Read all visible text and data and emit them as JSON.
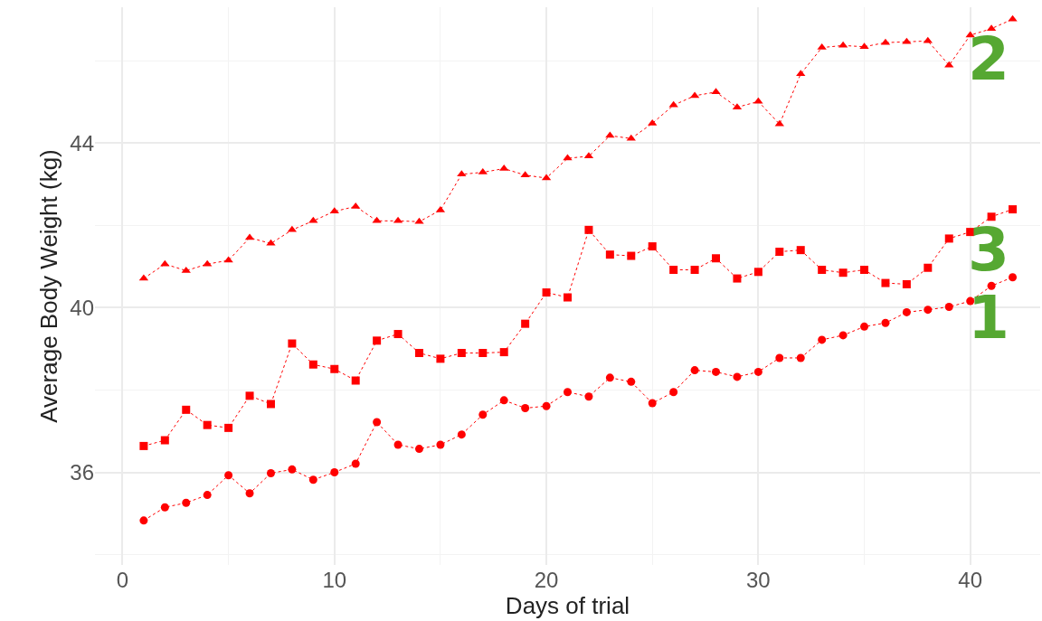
{
  "chart_data": {
    "type": "line",
    "xlabel": "Days of trial",
    "ylabel": "Average Body Weight (kg)",
    "x": [
      1,
      2,
      3,
      4,
      5,
      6,
      7,
      8,
      9,
      10,
      11,
      12,
      13,
      14,
      15,
      16,
      17,
      18,
      19,
      20,
      21,
      22,
      23,
      24,
      25,
      26,
      27,
      28,
      29,
      30,
      31,
      32,
      33,
      34,
      35,
      36,
      37,
      38,
      39,
      40,
      41,
      42
    ],
    "series": [
      {
        "name": "1",
        "color": "#ff0000",
        "marker": "circle",
        "values": [
          34.83,
          35.15,
          35.26,
          35.45,
          35.93,
          35.49,
          35.98,
          36.07,
          35.82,
          36.0,
          36.21,
          37.22,
          36.67,
          36.57,
          36.67,
          36.92,
          37.4,
          37.75,
          37.56,
          37.61,
          37.95,
          37.84,
          38.3,
          38.2,
          37.68,
          37.95,
          38.48,
          38.44,
          38.32,
          38.44,
          38.78,
          38.78,
          39.22,
          39.33,
          39.54,
          39.63,
          39.89,
          39.95,
          40.02,
          40.16,
          40.53,
          40.74
        ]
      },
      {
        "name": "2",
        "color": "#ff0000",
        "marker": "triangle",
        "values": [
          40.71,
          41.06,
          40.9,
          41.06,
          41.15,
          41.7,
          41.56,
          41.89,
          42.11,
          42.34,
          42.46,
          42.11,
          42.11,
          42.09,
          42.37,
          43.24,
          43.29,
          43.38,
          43.22,
          43.15,
          43.63,
          43.68,
          44.18,
          44.11,
          44.48,
          44.92,
          45.15,
          45.24,
          44.87,
          45.01,
          44.46,
          45.68,
          46.32,
          46.37,
          46.34,
          46.44,
          46.46,
          46.48,
          45.89,
          46.62,
          46.78,
          47.01
        ]
      },
      {
        "name": "3",
        "color": "#ff0000",
        "marker": "square",
        "values": [
          36.64,
          36.78,
          37.52,
          37.15,
          37.08,
          37.86,
          37.66,
          39.13,
          38.62,
          38.51,
          38.23,
          39.2,
          39.36,
          38.9,
          38.76,
          38.9,
          38.9,
          38.92,
          39.61,
          40.37,
          40.25,
          41.89,
          41.29,
          41.26,
          41.49,
          40.92,
          40.92,
          41.2,
          40.71,
          40.87,
          41.36,
          41.4,
          40.92,
          40.85,
          40.92,
          40.6,
          40.57,
          40.97,
          41.68,
          41.84,
          42.21,
          42.39
        ]
      }
    ],
    "xlim": [
      -1.3,
      43.3
    ],
    "xticks": [
      0,
      10,
      20,
      30,
      40
    ],
    "ylim": [
      33.75,
      47.3
    ],
    "yticks": [
      36,
      40,
      44
    ],
    "grid": true,
    "line_style": "dotted",
    "legend": false
  }
}
